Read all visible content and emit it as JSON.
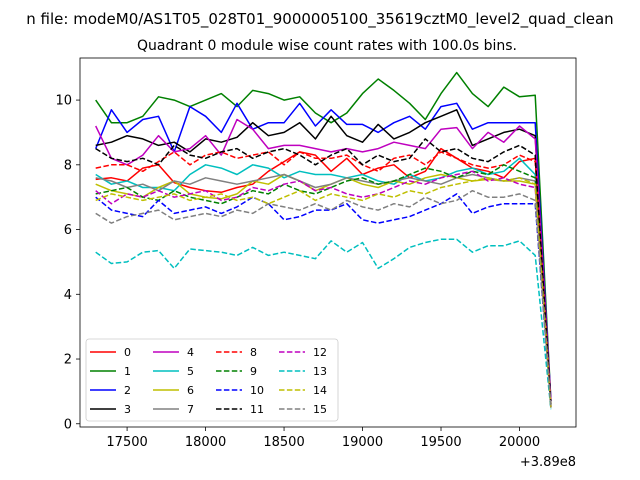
{
  "page": {
    "suptitle": "n file: modeM0/AS1T05_028T01_9000005100_35619cztM0_level2_quad_clean"
  },
  "chart_data": {
    "type": "line",
    "title": "Quadrant 0 module wise count rates with 100.0s bins.",
    "xlabel": "",
    "ylabel": "",
    "offset_label": "+3.89e8",
    "x_offset": 389000000,
    "xlim": [
      17200,
      20360
    ],
    "ylim": [
      -0.1,
      11.3
    ],
    "xticks": [
      17500,
      18000,
      18500,
      19000,
      19500,
      20000
    ],
    "yticks": [
      0,
      2,
      4,
      6,
      8,
      10
    ],
    "grid": false,
    "legend_placement": "lower-left",
    "x": [
      17300,
      17400,
      17500,
      17600,
      17700,
      17800,
      17900,
      18000,
      18100,
      18200,
      18300,
      18400,
      18500,
      18600,
      18700,
      18800,
      18900,
      19000,
      19100,
      19200,
      19300,
      19400,
      19500,
      19600,
      19700,
      19800,
      19900,
      20000,
      20100,
      20200
    ],
    "series": [
      {
        "name": "0",
        "color": "#ff0000",
        "dash": "solid",
        "values": [
          7.55,
          7.6,
          7.5,
          7.9,
          8.0,
          7.45,
          7.3,
          7.2,
          7.15,
          7.3,
          7.4,
          7.8,
          8.1,
          8.4,
          8.3,
          7.8,
          8.2,
          7.7,
          7.9,
          8.0,
          7.6,
          7.8,
          8.5,
          8.2,
          7.9,
          7.8,
          7.6,
          8.1,
          8.2,
          0.55
        ]
      },
      {
        "name": "1",
        "color": "#008000",
        "dash": "solid",
        "values": [
          10.0,
          9.3,
          9.3,
          9.5,
          10.1,
          10.0,
          9.8,
          10.0,
          10.2,
          9.8,
          10.3,
          10.2,
          10.0,
          10.1,
          9.6,
          9.3,
          9.6,
          10.2,
          10.65,
          10.3,
          9.9,
          9.4,
          10.2,
          10.85,
          10.2,
          9.8,
          10.4,
          10.1,
          10.15,
          0.7
        ]
      },
      {
        "name": "2",
        "color": "#0000ff",
        "dash": "solid",
        "values": [
          8.5,
          9.7,
          9.0,
          9.4,
          9.5,
          8.4,
          9.8,
          9.5,
          9.0,
          9.9,
          9.1,
          9.3,
          9.3,
          9.9,
          9.2,
          9.7,
          9.25,
          9.25,
          9.0,
          9.3,
          9.5,
          9.1,
          9.8,
          9.9,
          9.1,
          9.3,
          9.3,
          9.3,
          9.3,
          0.7
        ]
      },
      {
        "name": "3",
        "color": "#000000",
        "dash": "solid",
        "values": [
          8.6,
          8.7,
          8.9,
          8.8,
          8.6,
          8.7,
          8.4,
          8.8,
          8.7,
          8.85,
          9.3,
          8.9,
          9.0,
          9.3,
          8.8,
          9.5,
          8.9,
          8.7,
          9.25,
          8.8,
          9.0,
          9.3,
          9.5,
          9.7,
          8.6,
          8.8,
          9.0,
          9.1,
          8.9,
          0.6
        ]
      },
      {
        "name": "4",
        "color": "#bf00bf",
        "dash": "solid",
        "values": [
          9.2,
          8.2,
          8.0,
          8.3,
          8.9,
          8.4,
          8.5,
          8.9,
          8.3,
          9.4,
          9.1,
          8.5,
          8.6,
          8.6,
          8.5,
          8.4,
          8.5,
          8.4,
          8.5,
          8.7,
          8.6,
          8.5,
          9.1,
          9.15,
          8.5,
          9.0,
          8.7,
          9.2,
          8.8,
          0.7
        ]
      },
      {
        "name": "5",
        "color": "#00bfbf",
        "dash": "solid",
        "values": [
          7.7,
          7.4,
          7.5,
          7.3,
          7.3,
          7.2,
          7.7,
          8.0,
          7.9,
          7.7,
          8.0,
          7.9,
          7.6,
          7.8,
          7.7,
          7.7,
          7.6,
          7.7,
          7.5,
          7.4,
          7.7,
          7.5,
          7.6,
          7.8,
          7.9,
          7.7,
          7.8,
          8.2,
          7.7,
          0.55
        ]
      },
      {
        "name": "6",
        "color": "#bfbf00",
        "dash": "solid",
        "values": [
          7.4,
          7.2,
          7.1,
          7.0,
          7.3,
          7.5,
          7.1,
          7.0,
          6.95,
          7.1,
          7.5,
          7.4,
          7.7,
          7.5,
          7.2,
          7.4,
          7.6,
          7.4,
          7.3,
          7.5,
          7.4,
          7.6,
          7.7,
          7.6,
          7.5,
          7.55,
          7.5,
          7.5,
          7.4,
          0.5
        ]
      },
      {
        "name": "7",
        "color": "#808080",
        "dash": "solid",
        "values": [
          7.6,
          7.5,
          7.3,
          7.4,
          7.2,
          7.5,
          7.4,
          7.6,
          7.5,
          7.4,
          7.5,
          7.6,
          7.7,
          7.5,
          7.3,
          7.4,
          7.6,
          7.5,
          7.4,
          7.5,
          7.6,
          7.5,
          7.4,
          7.6,
          7.7,
          7.6,
          7.5,
          7.6,
          7.5,
          0.5
        ]
      },
      {
        "name": "8",
        "color": "#ff0000",
        "dash": "dashed",
        "values": [
          7.9,
          8.0,
          8.0,
          7.8,
          8.1,
          8.4,
          8.0,
          8.3,
          8.4,
          8.2,
          8.3,
          8.4,
          8.0,
          8.4,
          8.2,
          8.2,
          8.3,
          8.0,
          7.8,
          8.2,
          8.3,
          8.0,
          8.4,
          8.2,
          8.0,
          7.9,
          8.0,
          8.3,
          8.1,
          0.6
        ]
      },
      {
        "name": "9",
        "color": "#008000",
        "dash": "dashed",
        "values": [
          7.1,
          7.2,
          7.3,
          7.0,
          6.9,
          7.2,
          7.0,
          6.9,
          6.8,
          7.0,
          7.2,
          7.1,
          7.4,
          7.2,
          7.1,
          7.3,
          7.5,
          7.6,
          7.4,
          7.5,
          7.7,
          7.9,
          7.8,
          7.6,
          7.8,
          7.7,
          8.0,
          7.8,
          7.6,
          0.5
        ]
      },
      {
        "name": "10",
        "color": "#0000ff",
        "dash": "dashed",
        "values": [
          7.0,
          6.6,
          6.5,
          6.4,
          6.9,
          6.5,
          6.6,
          6.7,
          6.5,
          6.7,
          7.0,
          6.8,
          6.3,
          6.4,
          6.6,
          6.6,
          6.8,
          6.3,
          6.2,
          6.3,
          6.4,
          6.6,
          6.8,
          7.1,
          6.5,
          6.7,
          6.8,
          6.8,
          6.8,
          0.5
        ]
      },
      {
        "name": "11",
        "color": "#000000",
        "dash": "dashed",
        "values": [
          8.5,
          8.2,
          8.1,
          8.2,
          8.0,
          8.6,
          8.3,
          8.2,
          8.4,
          8.5,
          8.2,
          8.4,
          8.5,
          8.3,
          8.0,
          8.3,
          8.5,
          8.0,
          8.3,
          8.1,
          8.2,
          8.8,
          8.4,
          8.5,
          8.2,
          8.1,
          8.4,
          8.6,
          8.3,
          0.6
        ]
      },
      {
        "name": "12",
        "color": "#bf00bf",
        "dash": "dashed",
        "values": [
          7.2,
          6.8,
          7.1,
          7.0,
          7.2,
          7.0,
          7.1,
          7.2,
          6.9,
          7.0,
          7.3,
          7.2,
          7.4,
          7.5,
          7.2,
          7.3,
          7.1,
          7.0,
          7.1,
          7.3,
          7.5,
          7.4,
          7.6,
          7.7,
          7.8,
          7.5,
          7.6,
          7.4,
          7.3,
          0.5
        ]
      },
      {
        "name": "13",
        "color": "#00bfbf",
        "dash": "dashed",
        "values": [
          5.3,
          4.95,
          5.0,
          5.3,
          5.35,
          4.8,
          5.4,
          5.35,
          5.3,
          5.2,
          5.45,
          5.2,
          5.3,
          5.2,
          5.1,
          5.65,
          5.3,
          5.6,
          4.8,
          5.1,
          5.45,
          5.6,
          5.7,
          5.7,
          5.3,
          5.5,
          5.5,
          5.65,
          5.2,
          0.45
        ]
      },
      {
        "name": "14",
        "color": "#bfbf00",
        "dash": "dashed",
        "values": [
          6.9,
          7.1,
          7.0,
          6.9,
          7.0,
          7.1,
          6.9,
          7.0,
          7.1,
          6.9,
          7.0,
          6.8,
          7.0,
          7.2,
          6.9,
          7.1,
          7.0,
          6.9,
          7.1,
          7.0,
          7.2,
          7.1,
          7.3,
          7.4,
          7.5,
          7.6,
          7.5,
          7.6,
          7.4,
          0.5
        ]
      },
      {
        "name": "15",
        "color": "#808080",
        "dash": "dashed",
        "values": [
          6.5,
          6.2,
          6.4,
          6.5,
          6.6,
          6.3,
          6.4,
          6.5,
          6.4,
          6.6,
          6.5,
          6.8,
          6.7,
          6.6,
          6.8,
          6.6,
          6.9,
          6.7,
          6.6,
          6.8,
          6.7,
          7.0,
          6.8,
          6.9,
          7.2,
          7.0,
          7.0,
          7.1,
          6.9,
          0.5
        ]
      }
    ]
  }
}
